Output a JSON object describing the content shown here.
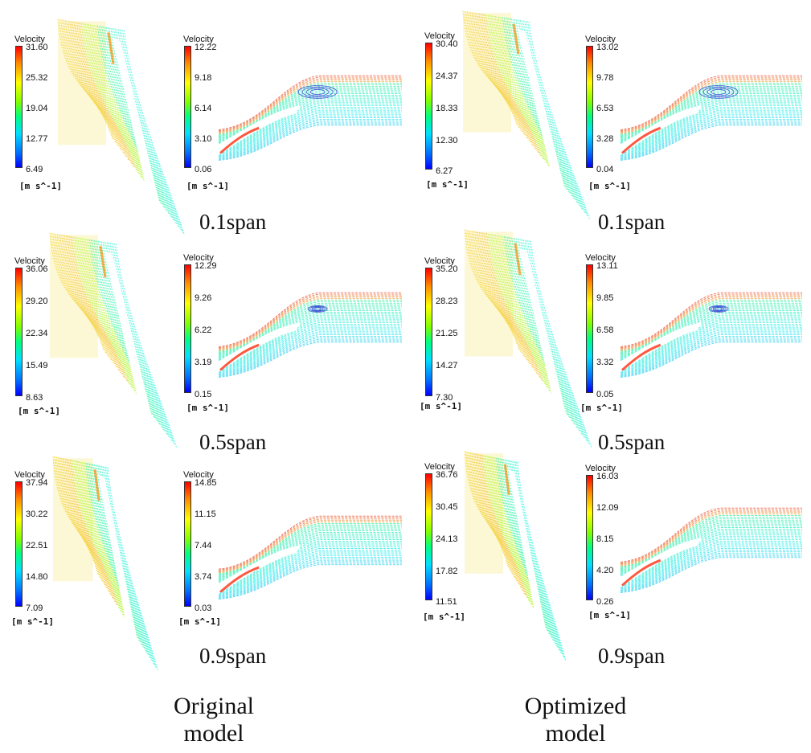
{
  "legend_title": "Velocity",
  "legend_unit": "[m s^-1]",
  "columns": [
    {
      "caption_line1": "Original",
      "caption_line2": "model"
    },
    {
      "caption_line1": "Optimized",
      "caption_line2": "model"
    }
  ],
  "rows": [
    {
      "span_label": "0.1span"
    },
    {
      "span_label": "0.5span"
    },
    {
      "span_label": "0.9span"
    }
  ],
  "legends": [
    {
      "id": "orig-0.1-blade",
      "ticks": [
        "31.60",
        "25.32",
        "19.04",
        "12.77",
        "6.49"
      ]
    },
    {
      "id": "orig-0.1-wake",
      "ticks": [
        "12.22",
        "9.18",
        "6.14",
        "3.10",
        "0.06"
      ]
    },
    {
      "id": "opt-0.1-blade",
      "ticks": [
        "30.40",
        "24.37",
        "18.33",
        "12.30",
        "6.27"
      ]
    },
    {
      "id": "opt-0.1-wake",
      "ticks": [
        "13.02",
        "9.78",
        "6.53",
        "3.28",
        "0.04"
      ]
    },
    {
      "id": "orig-0.5-blade",
      "ticks": [
        "36.06",
        "29.20",
        "22.34",
        "15.49",
        "8.63"
      ]
    },
    {
      "id": "orig-0.5-wake",
      "ticks": [
        "12.29",
        "9.26",
        "6.22",
        "3.19",
        "0.15"
      ]
    },
    {
      "id": "opt-0.5-blade",
      "ticks": [
        "35.20",
        "28.23",
        "21.25",
        "14.27",
        "7.30"
      ]
    },
    {
      "id": "opt-0.5-wake",
      "ticks": [
        "13.11",
        "9.85",
        "6.58",
        "3.32",
        "0.05"
      ]
    },
    {
      "id": "orig-0.9-blade",
      "ticks": [
        "37.94",
        "30.22",
        "22.51",
        "14.80",
        "7.09"
      ]
    },
    {
      "id": "orig-0.9-wake",
      "ticks": [
        "14.85",
        "11.15",
        "7.44",
        "3.74",
        "0.03"
      ]
    },
    {
      "id": "opt-0.9-blade",
      "ticks": [
        "36.76",
        "30.45",
        "24.13",
        "17.82",
        "11.51"
      ]
    },
    {
      "id": "opt-0.9-wake",
      "ticks": [
        "16.03",
        "12.09",
        "8.15",
        "4.20",
        "0.26"
      ]
    }
  ],
  "colors": {
    "velocity_high": "#ff0000",
    "velocity_mid_high": "#ffff00",
    "velocity_mid": "#00ff7f",
    "velocity_mid_low": "#00e0ff",
    "velocity_low": "#0000ff"
  }
}
